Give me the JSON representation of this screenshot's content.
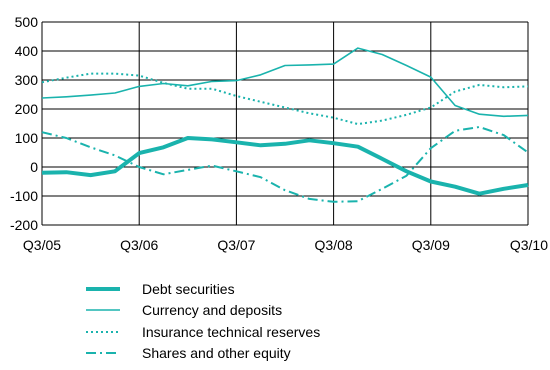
{
  "chart_data": {
    "type": "line",
    "categories": [
      "Q3/05",
      "Q4/05",
      "Q1/06",
      "Q2/06",
      "Q3/06",
      "Q4/06",
      "Q1/07",
      "Q2/07",
      "Q3/07",
      "Q4/07",
      "Q1/08",
      "Q2/08",
      "Q3/08",
      "Q4/08",
      "Q1/09",
      "Q2/09",
      "Q3/09",
      "Q4/09",
      "Q1/10",
      "Q2/10",
      "Q3/10"
    ],
    "x_tick_labels": [
      "Q3/05",
      "Q3/06",
      "Q3/07",
      "Q3/08",
      "Q3/09",
      "Q3/10"
    ],
    "ylim": [
      -200,
      500
    ],
    "y_ticks": [
      500,
      400,
      300,
      200,
      100,
      0,
      -100,
      -200
    ],
    "y_tick_labels": [
      "500",
      "400",
      "300",
      "200",
      "100",
      "0",
      "-100",
      "-200"
    ],
    "title": "",
    "xlabel": "",
    "ylabel": "",
    "legend_position": "bottom-left",
    "series": [
      {
        "name": "Debt securities",
        "color": "#1ab3ad",
        "style": "thick",
        "values": [
          -20,
          -18,
          -28,
          -15,
          48,
          68,
          100,
          95,
          85,
          75,
          80,
          92,
          82,
          70,
          28,
          -15,
          -50,
          -68,
          -92,
          -75,
          -62
        ]
      },
      {
        "name": "Currency and deposits",
        "color": "#1ab3ad",
        "style": "solid",
        "values": [
          238,
          242,
          248,
          255,
          278,
          288,
          280,
          295,
          298,
          318,
          350,
          352,
          355,
          410,
          388,
          350,
          310,
          212,
          182,
          175,
          178
        ]
      },
      {
        "name": "Insurance technical reserves",
        "color": "#1ab3ad",
        "style": "dotted",
        "values": [
          292,
          308,
          322,
          322,
          315,
          290,
          270,
          270,
          245,
          225,
          205,
          185,
          170,
          148,
          160,
          180,
          205,
          260,
          283,
          275,
          278
        ]
      },
      {
        "name": "Shares and other equity",
        "color": "#1ab3ad",
        "style": "dashdot",
        "values": [
          120,
          100,
          68,
          40,
          0,
          -25,
          -10,
          5,
          -15,
          -35,
          -80,
          -110,
          -120,
          -118,
          -75,
          -30,
          65,
          125,
          138,
          110,
          50
        ]
      }
    ]
  }
}
